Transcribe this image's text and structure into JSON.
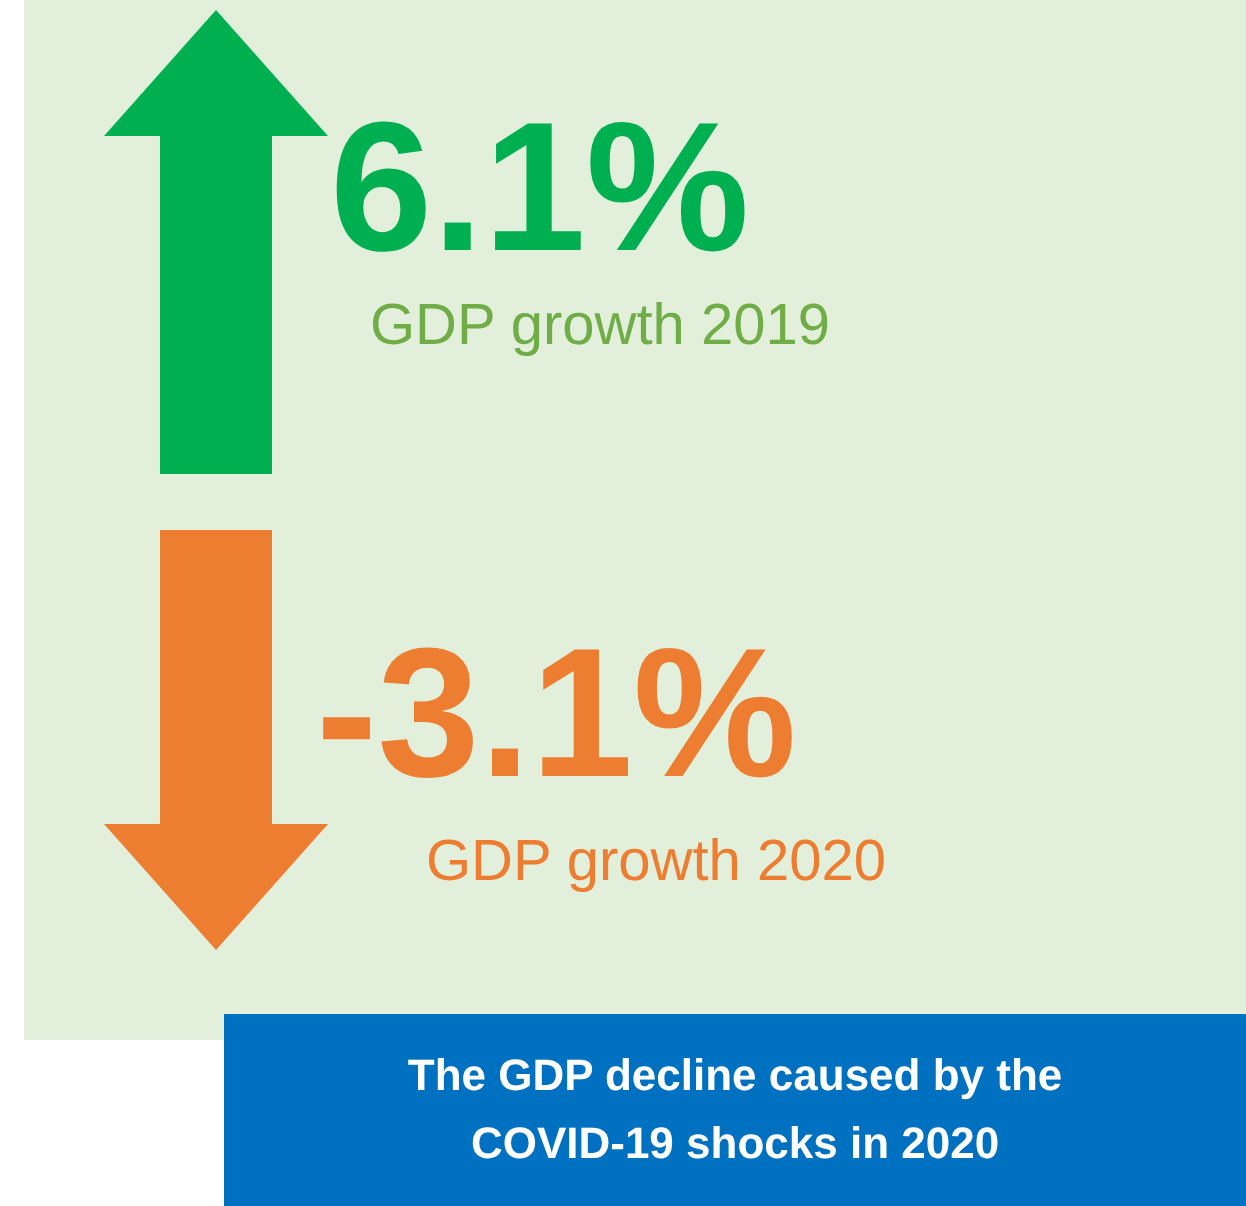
{
  "chart_data": {
    "type": "other",
    "categories": [
      "GDP growth 2019",
      "GDP growth 2020"
    ],
    "values": [
      6.1,
      -3.1
    ],
    "value_labels": [
      "6.1%",
      "-3.1%"
    ],
    "colors": [
      "#00b050",
      "#ed7d31"
    ],
    "annotations": [
      "The GDP decline caused by the COVID-19 shocks in 2020"
    ]
  }
}
